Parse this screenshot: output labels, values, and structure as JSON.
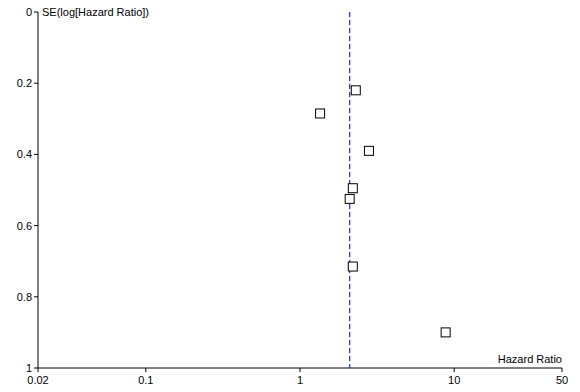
{
  "chart_data": {
    "type": "scatter",
    "x_label": "Hazard Ratio",
    "y_label": "SE(log[Hazard Ratio])",
    "x": [
      2.3,
      1.35,
      2.8,
      2.2,
      2.1,
      2.2,
      8.8
    ],
    "values": [
      0.22,
      0.285,
      0.39,
      0.495,
      0.525,
      0.715,
      0.9
    ],
    "pooled_estimate": 2.1,
    "xlim": [
      0.02,
      50
    ],
    "ylim": [
      1,
      0
    ],
    "xticks": [
      0.02,
      0.1,
      1,
      10,
      50
    ],
    "yticks": [
      0,
      0.2,
      0.4,
      0.6,
      0.8,
      1
    ],
    "log": "x",
    "grid": false,
    "marker": "square",
    "color": "#000000"
  }
}
